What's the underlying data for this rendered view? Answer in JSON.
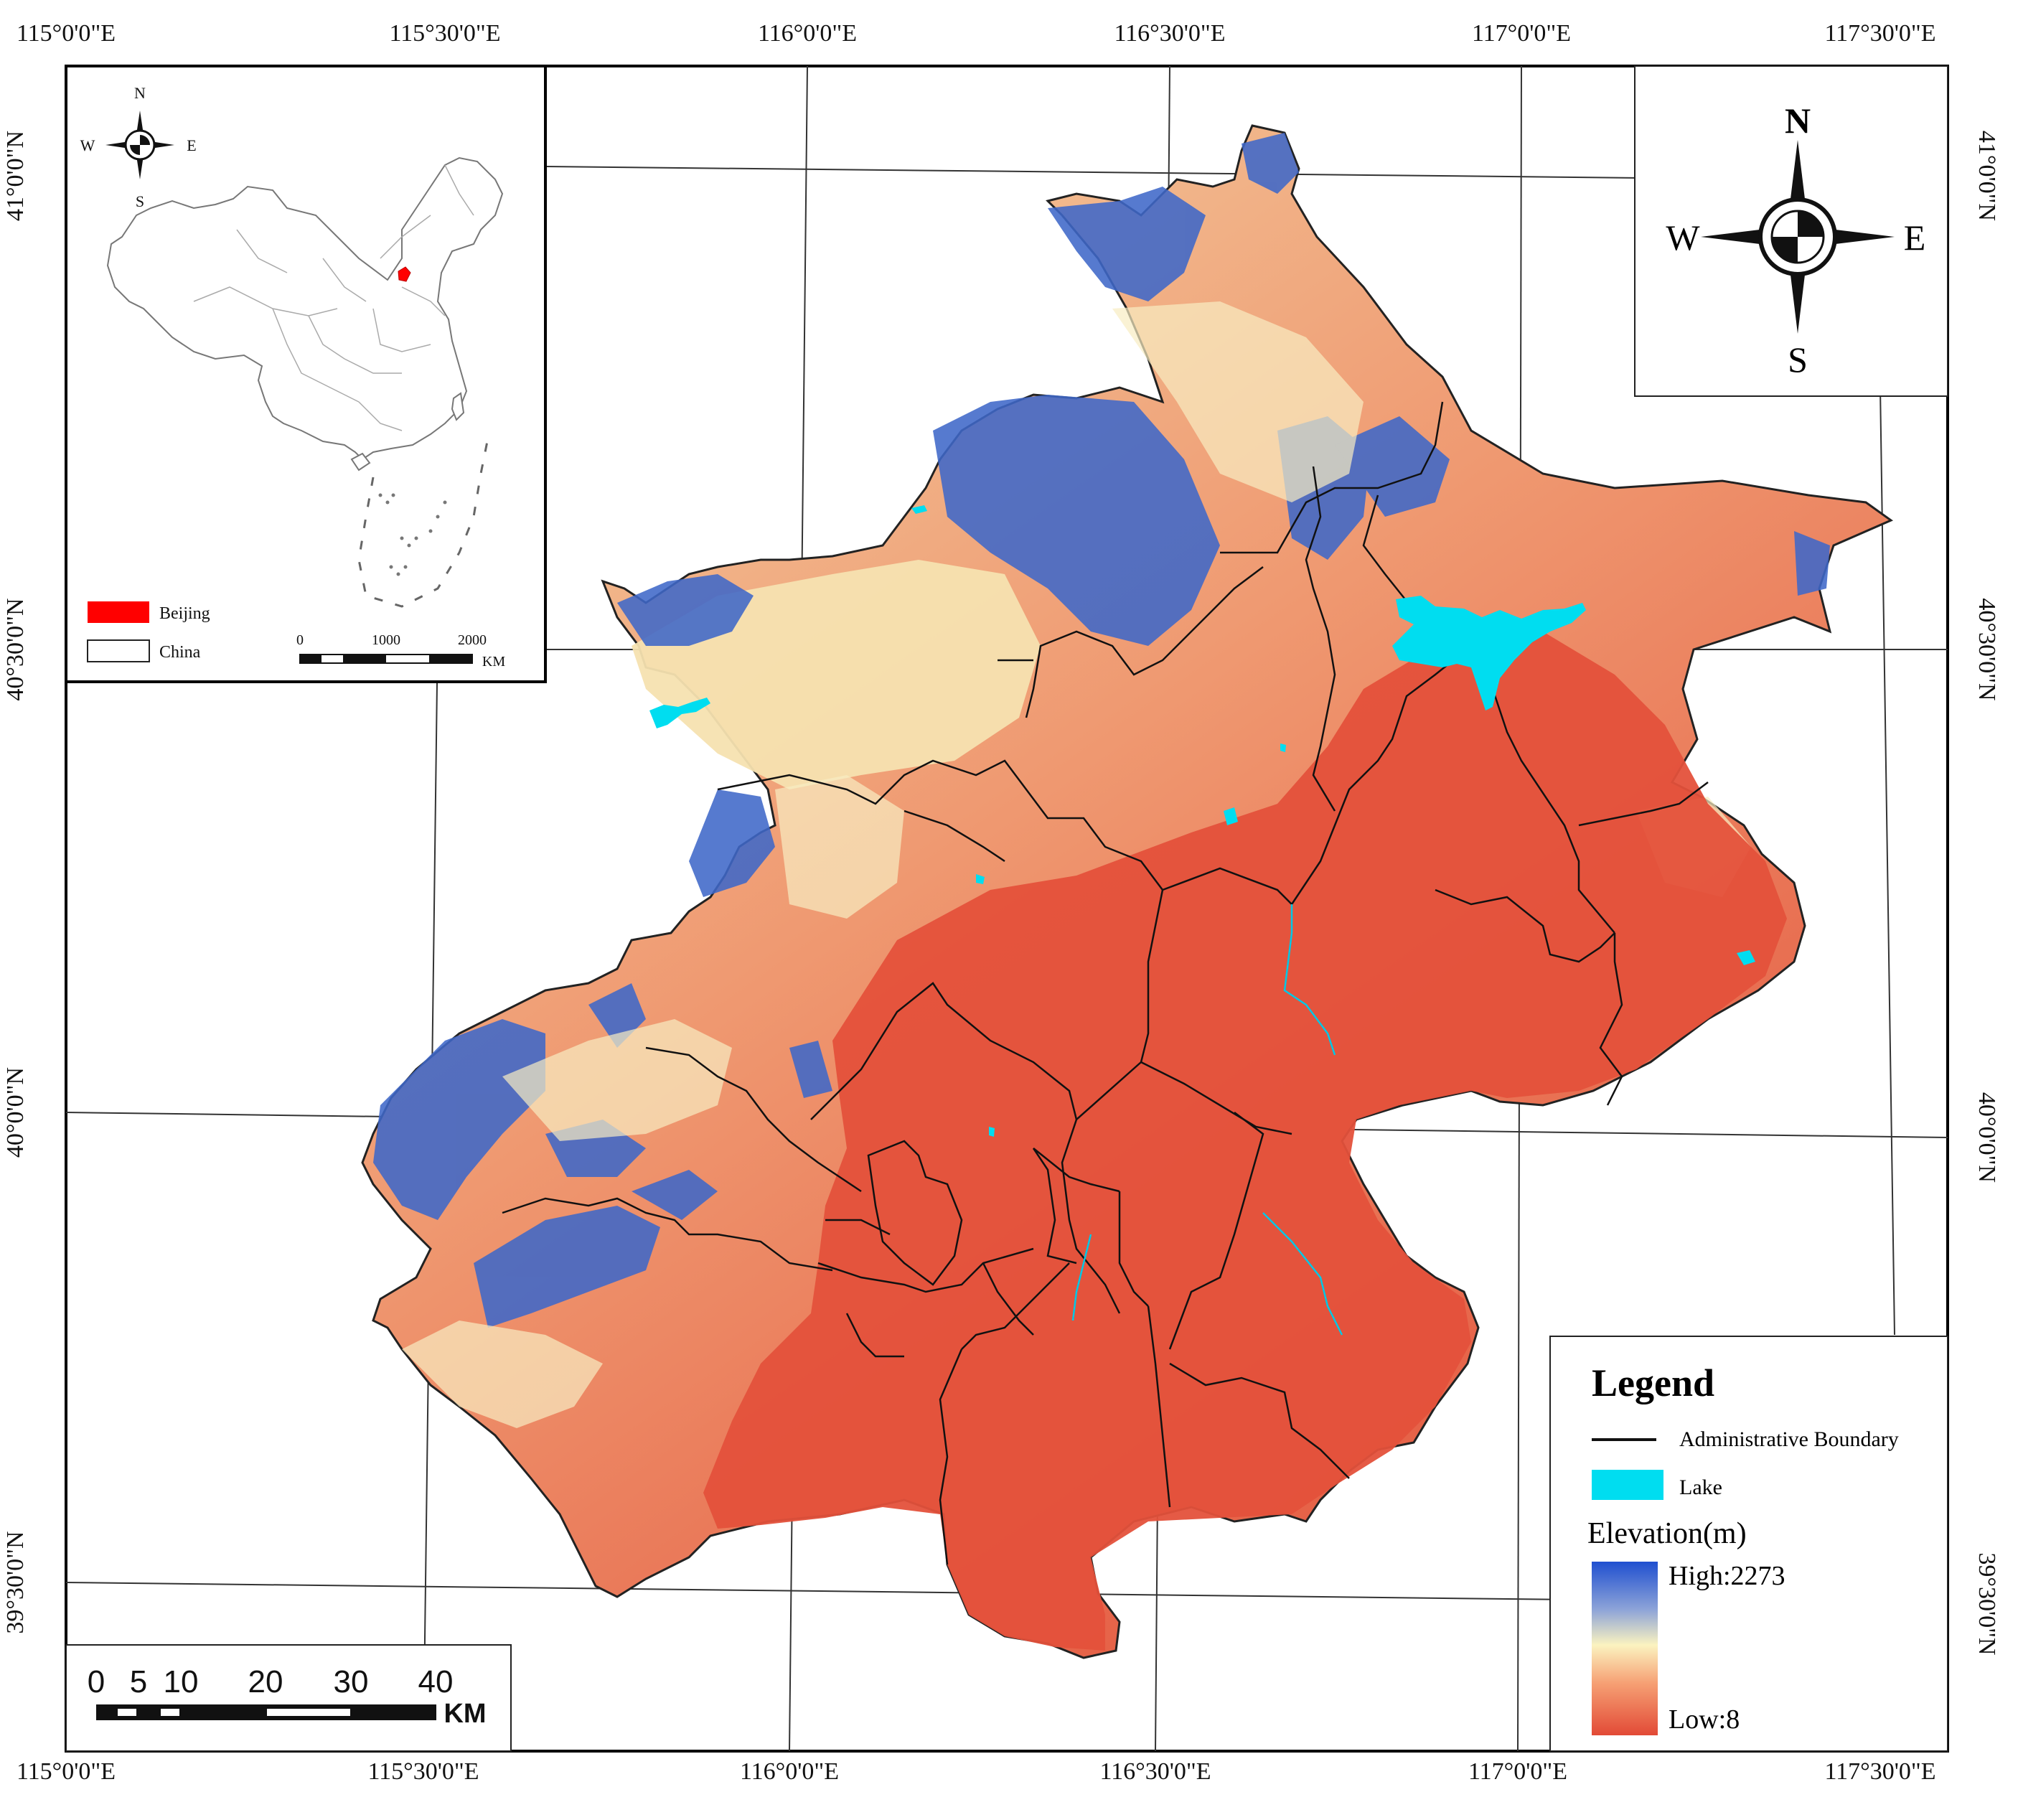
{
  "coordinates": {
    "top": [
      "115°0'0\"E",
      "115°30'0\"E",
      "116°0'0\"E",
      "116°30'0\"E",
      "117°0'0\"E",
      "117°30'0\"E"
    ],
    "bottom": [
      "115°0'0\"E",
      "115°30'0\"E",
      "116°0'0\"E",
      "116°30'0\"E",
      "117°0'0\"E",
      "117°30'0\"E"
    ],
    "left": [
      "41°0'0\"N",
      "40°30'0\"N",
      "40°0'0\"N",
      "39°30'0\"N"
    ],
    "right": [
      "41°0'0\"N",
      "40°30'0\"N",
      "40°0'0\"N",
      "39°30'0\"N"
    ]
  },
  "compass": {
    "n": "N",
    "s": "S",
    "e": "E",
    "w": "W"
  },
  "inset": {
    "compass": {
      "n": "N",
      "s": "S",
      "e": "E",
      "w": "W"
    },
    "legend_beijing": "Beijing",
    "legend_china": "China",
    "scale_ticks": [
      "0",
      "1000",
      "2000"
    ],
    "scale_unit": "KM",
    "colors": {
      "beijing": "#ff0000",
      "china": "#ffffff"
    }
  },
  "scale_bar": {
    "ticks": [
      "0",
      "5",
      "10",
      "20",
      "30",
      "40"
    ],
    "unit": "KM"
  },
  "legend": {
    "title": "Legend",
    "boundary_label": "Administrative Boundary",
    "lake_label": "Lake",
    "elevation_title": "Elevation(m)",
    "high_label": "High:2273",
    "low_label": "Low:8",
    "colors": {
      "lake": "#00ddf0",
      "high": "#1f4fd0",
      "mid": "#fbf3c0",
      "low": "#e24a36"
    }
  }
}
